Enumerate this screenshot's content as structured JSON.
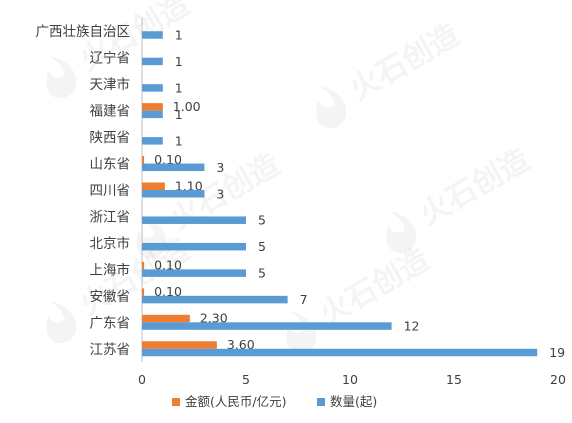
{
  "chart_data": {
    "type": "bar",
    "orientation": "horizontal",
    "categories": [
      "广西壮族自治区",
      "辽宁省",
      "天津市",
      "福建省",
      "陕西省",
      "山东省",
      "四川省",
      "浙江省",
      "北京市",
      "上海市",
      "安徽省",
      "广东省",
      "江苏省"
    ],
    "series": [
      {
        "name": "金额(人民币/亿元)",
        "color": "#ED7D31",
        "values": [
          null,
          null,
          null,
          1.0,
          null,
          0.1,
          1.1,
          null,
          null,
          0.1,
          0.1,
          2.3,
          3.6
        ],
        "labels": [
          "",
          "",
          "",
          "1.00",
          "",
          "0.10",
          "1.10",
          "",
          "",
          "0.10",
          "0.10",
          "2.30",
          "3.60"
        ]
      },
      {
        "name": "数量(起)",
        "color": "#5B9BD5",
        "values": [
          1,
          1,
          1,
          1,
          1,
          3,
          3,
          5,
          5,
          5,
          7,
          12,
          19
        ],
        "labels": [
          "1",
          "1",
          "1",
          "1",
          "1",
          "3",
          "3",
          "5",
          "5",
          "5",
          "7",
          "12",
          "19"
        ]
      }
    ],
    "x_ticks": [
      "0",
      "5",
      "10",
      "15",
      "20"
    ],
    "xlim": [
      0,
      20
    ],
    "title": "",
    "xlabel": "",
    "ylabel": "",
    "grid": false,
    "legend_position": "bottom",
    "watermark_text": "火石创造"
  }
}
